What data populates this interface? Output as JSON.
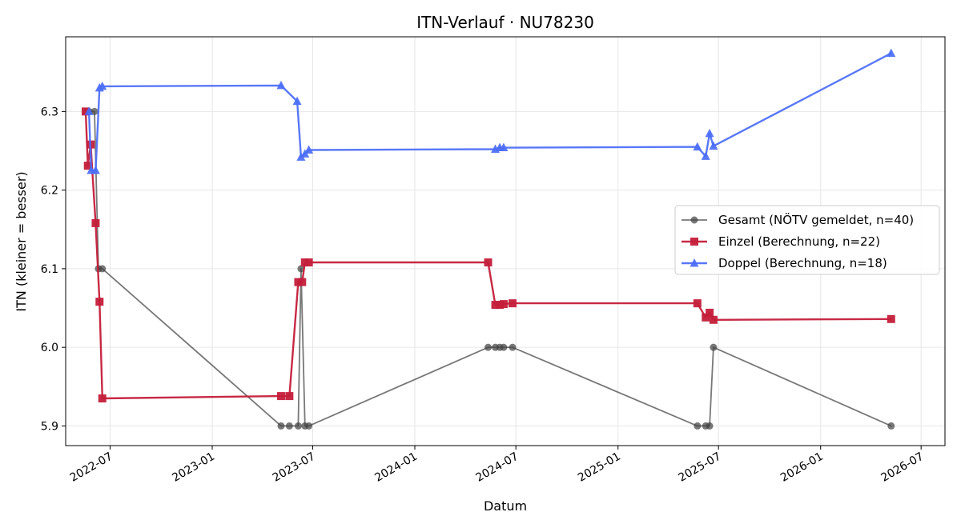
{
  "chart_data": {
    "type": "line",
    "title": "ITN-Verlauf · NU78230",
    "xlabel": "Datum",
    "ylabel": "ITN  (kleiner = besser)",
    "xlim": [
      "2022-04-12",
      "2026-08-13"
    ],
    "ylim": [
      5.875,
      6.395
    ],
    "x_ticks": [
      "2022-07",
      "2023-01",
      "2023-07",
      "2024-01",
      "2024-07",
      "2025-01",
      "2025-07",
      "2026-01",
      "2026-07"
    ],
    "y_ticks": [
      "5.9",
      "6.0",
      "6.1",
      "6.2",
      "6.3"
    ],
    "grid": true,
    "legend_position": "center-right",
    "series": [
      {
        "name": "Gesamt (NÖTV gemeldet, n=40)",
        "color": "#444444",
        "marker": "circle",
        "points": [
          [
            "2022-05-20",
            6.3
          ],
          [
            "2022-05-24",
            6.3
          ],
          [
            "2022-06-03",
            6.3
          ],
          [
            "2022-06-10",
            6.1
          ],
          [
            "2022-06-17",
            6.1
          ],
          [
            "2023-05-05",
            5.9
          ],
          [
            "2023-05-20",
            5.9
          ],
          [
            "2023-06-05",
            5.9
          ],
          [
            "2023-06-10",
            6.1
          ],
          [
            "2023-06-17",
            5.9
          ],
          [
            "2023-06-24",
            5.9
          ],
          [
            "2024-05-12",
            6.0
          ],
          [
            "2024-05-25",
            6.0
          ],
          [
            "2024-06-02",
            6.0
          ],
          [
            "2024-06-09",
            6.0
          ],
          [
            "2024-06-25",
            6.0
          ],
          [
            "2025-05-24",
            5.9
          ],
          [
            "2025-06-08",
            5.9
          ],
          [
            "2025-06-15",
            5.9
          ],
          [
            "2025-06-22",
            6.0
          ],
          [
            "2026-05-08",
            5.9
          ]
        ]
      },
      {
        "name": "Einzel (Berechnung, n=22)",
        "color": "#c41e3a",
        "marker": "square",
        "points": [
          [
            "2022-05-18",
            6.3
          ],
          [
            "2022-05-22",
            6.231
          ],
          [
            "2022-05-27",
            6.258
          ],
          [
            "2022-06-05",
            6.158
          ],
          [
            "2022-06-12",
            6.058
          ],
          [
            "2022-06-17",
            5.935
          ],
          [
            "2023-05-05",
            5.938
          ],
          [
            "2023-05-20",
            5.938
          ],
          [
            "2023-06-05",
            6.083
          ],
          [
            "2023-06-12",
            6.083
          ],
          [
            "2023-06-17",
            6.108
          ],
          [
            "2023-06-24",
            6.108
          ],
          [
            "2024-05-12",
            6.108
          ],
          [
            "2024-05-25",
            6.054
          ],
          [
            "2024-06-02",
            6.054
          ],
          [
            "2024-06-09",
            6.055
          ],
          [
            "2024-06-25",
            6.056
          ],
          [
            "2025-05-24",
            6.056
          ],
          [
            "2025-06-08",
            6.038
          ],
          [
            "2025-06-15",
            6.044
          ],
          [
            "2025-06-22",
            6.035
          ],
          [
            "2026-05-08",
            6.036
          ]
        ]
      },
      {
        "name": "Doppel (Berechnung, n=18)",
        "color": "#4a6cf7",
        "marker": "triangle",
        "points": [
          [
            "2022-05-24",
            6.3
          ],
          [
            "2022-05-28",
            6.225
          ],
          [
            "2022-06-05",
            6.225
          ],
          [
            "2022-06-12",
            6.33
          ],
          [
            "2022-06-17",
            6.332
          ],
          [
            "2023-05-05",
            6.333
          ],
          [
            "2023-06-03",
            6.313
          ],
          [
            "2023-06-10",
            6.242
          ],
          [
            "2023-06-17",
            6.246
          ],
          [
            "2023-06-24",
            6.251
          ],
          [
            "2024-05-25",
            6.252
          ],
          [
            "2024-06-02",
            6.254
          ],
          [
            "2024-06-09",
            6.254
          ],
          [
            "2025-05-24",
            6.255
          ],
          [
            "2025-06-08",
            6.243
          ],
          [
            "2025-06-15",
            6.272
          ],
          [
            "2025-06-22",
            6.256
          ],
          [
            "2026-05-08",
            6.374
          ]
        ]
      }
    ]
  }
}
